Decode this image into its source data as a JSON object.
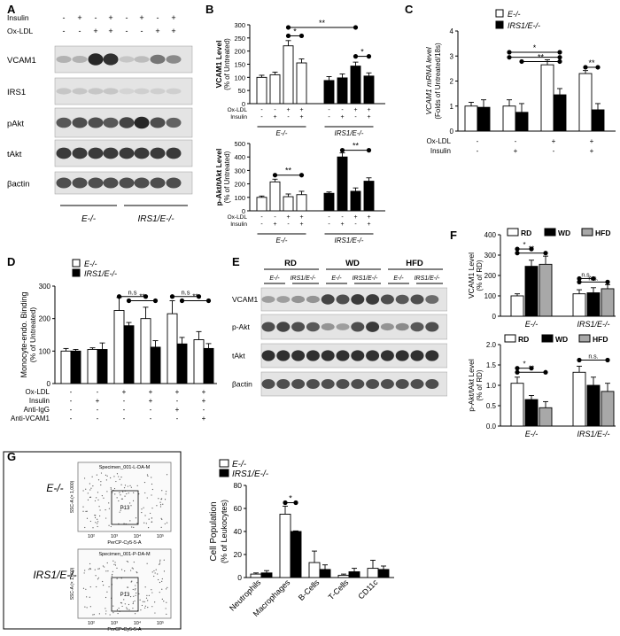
{
  "panels": {
    "A": "A",
    "B": "B",
    "C": "C",
    "D": "D",
    "E": "E",
    "F": "F",
    "G": "G"
  },
  "colors": {
    "black": "#000000",
    "white": "#ffffff",
    "gray": "#a8a8a8",
    "blot_bg": "#e4e4e4",
    "band": "#1c1c1c"
  },
  "groups": {
    "e": "E-/-",
    "irs": "IRS1/E-/-"
  },
  "panelA": {
    "treat_labels": [
      "Insulin",
      "Ox-LDL"
    ],
    "treat_signs": [
      [
        "-",
        "+",
        "-",
        "+",
        "-",
        "+",
        "-",
        "+"
      ],
      [
        "-",
        "-",
        "+",
        "+",
        "-",
        "-",
        "+",
        "+"
      ]
    ],
    "blot_labels": [
      "VCAM1",
      "IRS1",
      "pAkt",
      "tAkt",
      "βactin"
    ]
  },
  "panelB1": {
    "ylabel1": "VCAM1 Level",
    "ylabel2": "(% of Untreated)",
    "yticks": [
      "0",
      "50",
      "100",
      "150",
      "200",
      "250",
      "300"
    ],
    "star1": "*",
    "star2": "*",
    "star3": "**",
    "treat_labels": [
      "Ox-LDL",
      "Insulin"
    ],
    "treat_signs": [
      [
        "-",
        "-",
        "+",
        "+",
        "-",
        "-",
        "+",
        "+"
      ],
      [
        "-",
        "+",
        "-",
        "+",
        "-",
        "+",
        "-",
        "+"
      ]
    ]
  },
  "panelB2": {
    "ylabel1": "p-Akt/tAkt Level",
    "ylabel2": "(% of Untreated)",
    "yticks": [
      "0",
      "100",
      "200",
      "300",
      "400",
      "500"
    ],
    "star1": "**",
    "star2": "**",
    "treat_labels": [
      "Ox-LDL",
      "Insulin"
    ],
    "treat_signs": [
      [
        "-",
        "-",
        "+",
        "+",
        "-",
        "-",
        "+",
        "+"
      ],
      [
        "-",
        "+",
        "-",
        "+",
        "-",
        "+",
        "-",
        "+"
      ]
    ]
  },
  "panelC": {
    "ylabel1": "VCAM1 mRNA level",
    "ylabel2": "(Folds of Untreated/18s)",
    "yticks": [
      "0",
      "1",
      "2",
      "3",
      "4"
    ],
    "star1": "*",
    "star2": "**",
    "star3": "**",
    "treat_labels": [
      "Ox-LDL",
      "Insulin"
    ],
    "treat_signs": [
      [
        "-",
        "-",
        "+",
        "+"
      ],
      [
        "-",
        "+",
        "-",
        "+"
      ]
    ]
  },
  "panelD": {
    "ylabel1": "Monocyte-endo. Binding",
    "ylabel2": "(% of Untreated)",
    "yticks": [
      "0",
      "100",
      "200",
      "300"
    ],
    "ns1": "n.s",
    "ns2": "n.s",
    "star1": "**",
    "star2": "**",
    "treat_labels": [
      "Ox-LDL",
      "Insulin",
      "Anti-IgG",
      "Anti-VCAM1"
    ],
    "treat_signs": [
      [
        "-",
        "-",
        "+",
        "+",
        "+",
        "+"
      ],
      [
        "-",
        "+",
        "-",
        "+",
        "-",
        "+"
      ],
      [
        "-",
        "-",
        "-",
        "-",
        "+",
        "-"
      ],
      [
        "-",
        "-",
        "-",
        "-",
        "-",
        "+"
      ]
    ]
  },
  "panelE": {
    "diets": [
      "RD",
      "WD",
      "HFD"
    ],
    "blot_labels": [
      "VCAM1",
      "p-Akt",
      "tAkt",
      "βactin"
    ]
  },
  "panelF": {
    "legend": [
      "RD",
      "WD",
      "HFD"
    ],
    "ylabel1_top": "VCAM1 Level",
    "ylabel2_top": "(% of RD)",
    "yticks_top": [
      "0",
      "100",
      "200",
      "300",
      "400"
    ],
    "ylabel1_bot": "p-Akt/tAkt Level",
    "ylabel2_bot": "(% of RD)",
    "yticks_bot": [
      "0.0",
      "0.5",
      "1.0",
      "1.5",
      "2.0"
    ],
    "sig_top": [
      "*",
      "**",
      "n.s.",
      "n.s."
    ],
    "sig_bot": [
      "*",
      "**",
      "n.s."
    ]
  },
  "panelG": {
    "flow": [
      {
        "group": "E-/-",
        "title": "Specimen_001-L-DA-M",
        "gate": "P13"
      },
      {
        "group": "IRS1/E-/-",
        "title": "Specimen_001-P-DA-M",
        "gate": "P13"
      }
    ],
    "flow_xlabel": "PerCP-Cy5-5-A",
    "flow_ylabel": "SSC-A (× 1,000)",
    "flow_ticks": [
      "10²",
      "10³",
      "10⁴",
      "10⁵"
    ],
    "ylabel1": "Cell Population",
    "ylabel2": "(% of Leukocytes)",
    "yticks": [
      "0",
      "20",
      "40",
      "60",
      "80"
    ],
    "star": "*"
  },
  "chart_data": [
    {
      "type": "bar",
      "panel": "B-top",
      "categories": [
        "E-/- untreated",
        "E-/- Insulin",
        "E-/- Ox-LDL",
        "E-/- Ox-LDL+Insulin",
        "IRS1/E-/- untreated",
        "IRS1/E-/- Insulin",
        "IRS1/E-/- Ox-LDL",
        "IRS1/E-/- Ox-LDL+Insulin"
      ],
      "series": [
        {
          "values": [
            100,
            110,
            220,
            155,
            88,
            98,
            143,
            105
          ],
          "errors": [
            8,
            10,
            20,
            15,
            15,
            15,
            15,
            12
          ]
        }
      ],
      "ylim": [
        0,
        300
      ]
    },
    {
      "type": "bar",
      "panel": "B-bottom",
      "categories": [
        "E-/- untreated",
        "E-/- Insulin",
        "E-/- Ox-LDL",
        "E-/- Ox-LDL+Insulin",
        "IRS1/E-/- untreated",
        "IRS1/E-/- Insulin",
        "IRS1/E-/- Ox-LDL",
        "IRS1/E-/- Ox-LDL+Insulin"
      ],
      "series": [
        {
          "values": [
            100,
            215,
            105,
            120,
            130,
            400,
            145,
            220
          ],
          "errors": [
            10,
            20,
            20,
            25,
            10,
            30,
            25,
            25
          ]
        }
      ],
      "ylim": [
        0,
        500
      ]
    },
    {
      "type": "bar",
      "panel": "C",
      "categories": [
        "untreated",
        "Insulin",
        "Ox-LDL",
        "Ox-LDL+Insulin"
      ],
      "series": [
        {
          "name": "E-/-",
          "values": [
            1.0,
            1.0,
            2.65,
            2.3
          ],
          "errors": [
            0.15,
            0.25,
            0.2,
            0.12
          ]
        },
        {
          "name": "IRS1/E-/-",
          "values": [
            0.95,
            0.75,
            1.45,
            0.85
          ],
          "errors": [
            0.3,
            0.35,
            0.25,
            0.25
          ]
        }
      ],
      "ylim": [
        0,
        4
      ]
    },
    {
      "type": "bar",
      "panel": "D",
      "categories": [
        "untreated",
        "Insulin",
        "Ox-LDL",
        "Ox-LDL+Insulin",
        "Ox-LDL+Anti-IgG",
        "Ox-LDL+Anti-VCAM1"
      ],
      "series": [
        {
          "name": "E-/-",
          "values": [
            100,
            105,
            225,
            200,
            215,
            135
          ],
          "errors": [
            8,
            5,
            40,
            35,
            40,
            25
          ]
        },
        {
          "name": "IRS1/E-/-",
          "values": [
            100,
            105,
            178,
            112,
            122,
            108
          ],
          "errors": [
            5,
            20,
            10,
            20,
            20,
            15
          ]
        }
      ],
      "ylim": [
        0,
        300
      ]
    },
    {
      "type": "bar",
      "panel": "F-top",
      "categories": [
        "E-/-",
        "IRS1/E-/-"
      ],
      "series": [
        {
          "name": "RD",
          "values": [
            100,
            110
          ],
          "errors": [
            10,
            20
          ]
        },
        {
          "name": "WD",
          "values": [
            245,
            115
          ],
          "errors": [
            30,
            25
          ]
        },
        {
          "name": "HFD",
          "values": [
            255,
            135
          ],
          "errors": [
            40,
            20
          ]
        }
      ],
      "ylim": [
        0,
        400
      ]
    },
    {
      "type": "bar",
      "panel": "F-bottom",
      "categories": [
        "E-/-",
        "IRS1/E-/-"
      ],
      "series": [
        {
          "name": "RD",
          "values": [
            1.05,
            1.32
          ],
          "errors": [
            0.15,
            0.15
          ]
        },
        {
          "name": "WD",
          "values": [
            0.65,
            1.0
          ],
          "errors": [
            0.1,
            0.2
          ]
        },
        {
          "name": "HFD",
          "values": [
            0.45,
            0.85
          ],
          "errors": [
            0.15,
            0.2
          ]
        }
      ],
      "ylim": [
        0,
        2
      ]
    },
    {
      "type": "bar",
      "panel": "G",
      "categories": [
        "Neutrophils",
        "Macrophages",
        "B-Cells",
        "T-Cells",
        "CD11c"
      ],
      "series": [
        {
          "name": "E-/-",
          "values": [
            3,
            55,
            13,
            2,
            8
          ],
          "errors": [
            1,
            7,
            10,
            1,
            7
          ]
        },
        {
          "name": "IRS1/E-/-",
          "values": [
            4,
            40,
            7,
            5,
            7
          ],
          "errors": [
            2,
            0.5,
            4,
            3,
            3
          ]
        }
      ],
      "ylim": [
        0,
        80
      ]
    }
  ]
}
